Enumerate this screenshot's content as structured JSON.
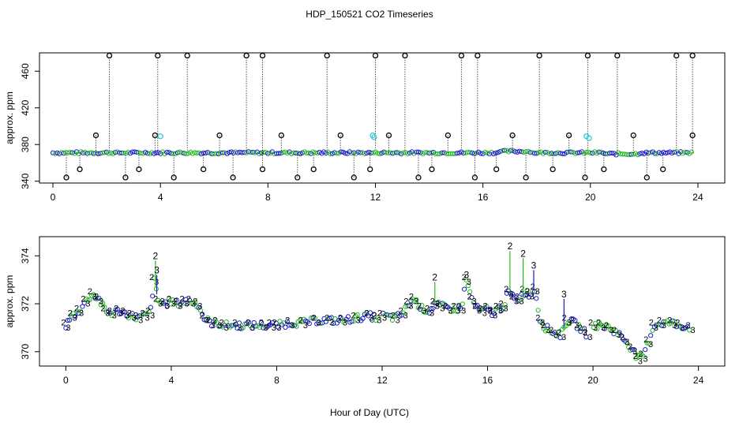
{
  "chart_data": {
    "title": "HDP_150521  CO2 Timeseries",
    "xlabel": "Hour of Day (UTC)",
    "colors": {
      "series_2": "#22bb22",
      "series_3": "#1a1acc",
      "outlier": "#000000",
      "cyan": "#33cccc"
    },
    "panels": [
      {
        "type": "scatter",
        "ylabel": "approx. ppm",
        "xlim": [
          -0.5,
          25
        ],
        "ylim": [
          338,
          480
        ],
        "xticks": [
          0,
          4,
          8,
          12,
          16,
          20,
          24
        ],
        "yticks": [
          340,
          380,
          420,
          460
        ],
        "outliers_high": [
          2.1,
          3.9,
          5.0,
          7.2,
          7.8,
          10.2,
          12.0,
          13.1,
          15.2,
          15.8,
          18.1,
          19.9,
          21.0,
          23.2,
          23.8
        ],
        "outliers_low": [
          0.5,
          1.0,
          1.6,
          2.7,
          3.2,
          3.8,
          4.5,
          5.6,
          6.2,
          6.7,
          7.8,
          8.5,
          9.1,
          9.7,
          10.7,
          11.2,
          11.8,
          12.5,
          13.6,
          14.1,
          14.7,
          15.7,
          16.5,
          17.1,
          17.6,
          18.6,
          19.2,
          19.8,
          20.5,
          21.6,
          22.1,
          22.7,
          23.8
        ],
        "cyan_points": [
          [
            4.0,
            389
          ],
          [
            11.9,
            390
          ],
          [
            11.95,
            388
          ],
          [
            19.85,
            389
          ],
          [
            19.95,
            387
          ]
        ]
      },
      {
        "type": "scatter",
        "ylabel": "approx. ppm",
        "xlim": [
          -1,
          25
        ],
        "ylim": [
          369.4,
          374.8
        ],
        "xticks": [
          0,
          4,
          8,
          12,
          16,
          20,
          24
        ],
        "yticks": [
          370,
          372,
          374
        ],
        "series": [
          {
            "name": "2",
            "marker": "2"
          },
          {
            "name": "3",
            "marker": "3"
          }
        ],
        "x": [
          0.0,
          0.25,
          0.5,
          0.75,
          1.0,
          1.25,
          1.5,
          1.75,
          2.0,
          2.25,
          2.5,
          2.75,
          3.0,
          3.2,
          3.35,
          3.5,
          3.75,
          4.0,
          4.25,
          4.5,
          4.75,
          5.0,
          5.25,
          5.5,
          5.75,
          6.0,
          6.5,
          7.0,
          7.5,
          7.8,
          8.0,
          8.5,
          9.0,
          9.5,
          10.0,
          10.5,
          11.0,
          11.5,
          11.8,
          12.0,
          12.5,
          12.8,
          13.0,
          13.2,
          13.5,
          13.8,
          14.0,
          14.2,
          14.5,
          14.8,
          15.0,
          15.2,
          15.4,
          15.6,
          15.8,
          16.0,
          16.2,
          16.4,
          16.6,
          16.8,
          17.0,
          17.2,
          17.4,
          17.6,
          17.8,
          18.0,
          18.2,
          18.5,
          18.8,
          19.0,
          19.3,
          19.6,
          19.8,
          20.0,
          20.3,
          20.6,
          20.9,
          21.2,
          21.5,
          21.7,
          21.9,
          22.1,
          22.3,
          22.6,
          23.0,
          23.3,
          23.7
        ],
        "y": [
          371.1,
          371.5,
          371.7,
          372.1,
          372.4,
          372.2,
          371.7,
          371.6,
          371.7,
          371.6,
          371.5,
          371.4,
          371.5,
          371.6,
          373.0,
          372.1,
          372.0,
          372.1,
          372.0,
          372.1,
          372.1,
          372.0,
          371.4,
          371.2,
          371.2,
          371.1,
          371.1,
          371.1,
          371.1,
          371.1,
          371.1,
          371.2,
          371.2,
          371.3,
          371.3,
          371.3,
          371.4,
          371.5,
          371.4,
          371.5,
          371.4,
          371.6,
          372.0,
          372.2,
          371.8,
          371.7,
          372.0,
          371.9,
          371.8,
          371.8,
          371.8,
          373.0,
          372.2,
          371.8,
          371.7,
          371.8,
          371.6,
          371.8,
          371.9,
          372.5,
          372.2,
          372.2,
          372.5,
          372.4,
          372.6,
          371.3,
          371.0,
          370.8,
          370.7,
          371.3,
          371.2,
          370.9,
          370.7,
          371.1,
          371.1,
          371.0,
          370.8,
          370.5,
          370.1,
          369.7,
          369.8,
          370.4,
          371.1,
          371.2,
          371.2,
          371.1,
          371.0
        ]
      }
    ]
  }
}
